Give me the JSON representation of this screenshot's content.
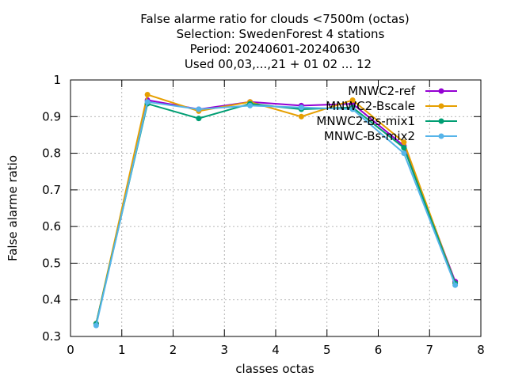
{
  "chart_data": {
    "type": "line",
    "title_lines": [
      "False alarme ratio  for clouds <7500m (octas)",
      "Selection: SwedenForest      4 stations",
      "Period: 20240601-20240630",
      "Used 00,03,...,21 + 01 02 ... 12"
    ],
    "xlabel": "classes octas",
    "ylabel": "False alarme ratio",
    "xlim": [
      0,
      8
    ],
    "ylim": [
      0.3,
      1.0
    ],
    "xticks": [
      0,
      1,
      2,
      3,
      4,
      5,
      6,
      7,
      8
    ],
    "yticks": [
      0.3,
      0.4,
      0.5,
      0.6,
      0.7,
      0.8,
      0.9,
      1.0
    ],
    "ytick_labels": [
      "0.3",
      "0.4",
      "0.5",
      "0.6",
      "0.7",
      "0.8",
      "0.9",
      "1"
    ],
    "grid": true,
    "legend_position": "top-right",
    "x": [
      0.5,
      1.5,
      2.5,
      3.5,
      4.5,
      5.5,
      6.5,
      7.5
    ],
    "series": [
      {
        "name": "MNWC2-ref",
        "color": "#9400d3",
        "values": [
          0.335,
          0.945,
          0.92,
          0.94,
          0.93,
          0.935,
          0.82,
          0.45
        ]
      },
      {
        "name": "MNWC2-Bscale",
        "color": "#e69f00",
        "values": [
          0.335,
          0.96,
          0.915,
          0.94,
          0.9,
          0.945,
          0.83,
          0.445
        ]
      },
      {
        "name": "MNWC2-Bs-mix1",
        "color": "#009e73",
        "values": [
          0.335,
          0.935,
          0.895,
          0.935,
          0.92,
          0.925,
          0.815,
          0.445
        ]
      },
      {
        "name": "MNWC-Bs-mix2",
        "color": "#56b4e9",
        "values": [
          0.33,
          0.94,
          0.92,
          0.93,
          0.925,
          0.92,
          0.8,
          0.44
        ]
      }
    ]
  }
}
